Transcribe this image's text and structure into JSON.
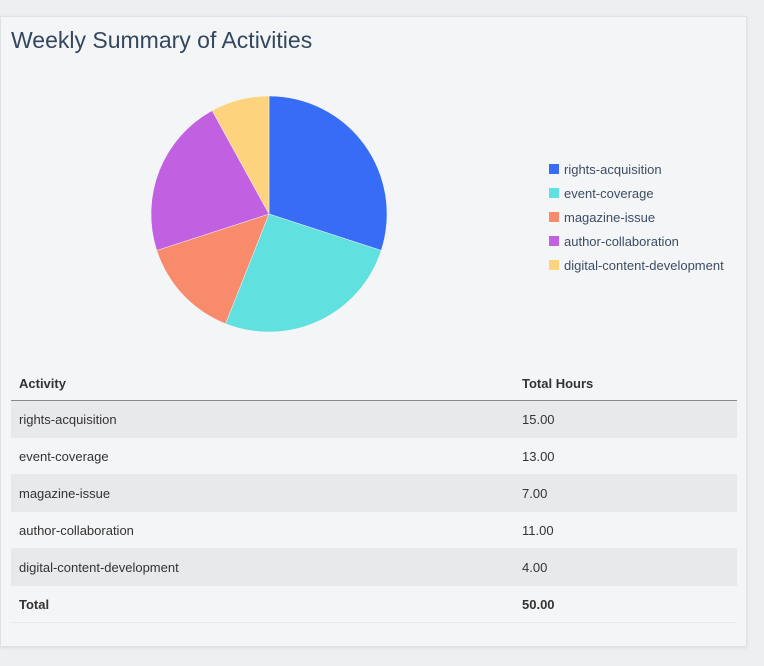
{
  "title": "Weekly Summary of Activities",
  "chart_data": {
    "type": "pie",
    "categories": [
      "rights-acquisition",
      "event-coverage",
      "magazine-issue",
      "author-collaboration",
      "digital-content-development"
    ],
    "values": [
      15,
      13,
      7,
      11,
      4
    ],
    "colors": [
      "#376df6",
      "#61e0e0",
      "#f78b6b",
      "#c160e0",
      "#fed37d"
    ],
    "legend_position": "right",
    "start_angle": "top, clockwise"
  },
  "table": {
    "headers": [
      "Activity",
      "Total Hours"
    ],
    "rows": [
      [
        "rights-acquisition",
        "15.00"
      ],
      [
        "event-coverage",
        "13.00"
      ],
      [
        "magazine-issue",
        "7.00"
      ],
      [
        "author-collaboration",
        "11.00"
      ],
      [
        "digital-content-development",
        "4.00"
      ]
    ],
    "total": [
      "Total",
      "50.00"
    ]
  }
}
